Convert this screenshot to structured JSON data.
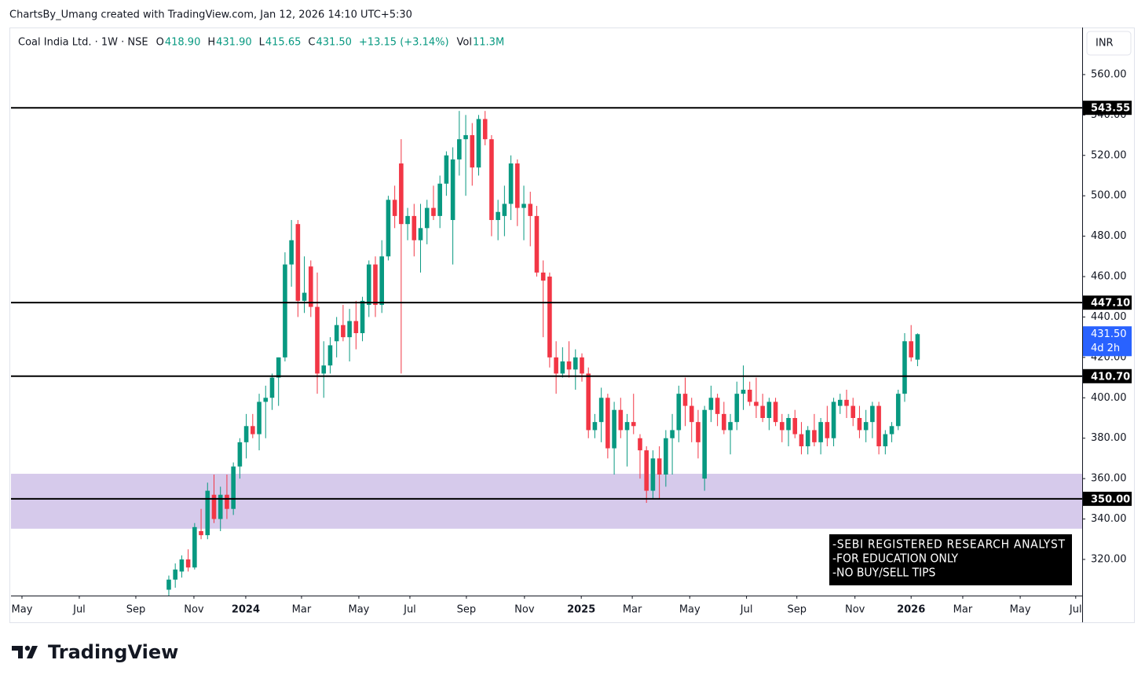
{
  "chart_data": {
    "type": "candlestick",
    "attribution": "ChartsBy_Umang created with TradingView.com, Jan 12, 2026 14:10 UTC+5:30",
    "symbol": "Coal India Ltd. · 1W · NSE",
    "ohlc_header": [
      {
        "label": "O",
        "value": "418.90"
      },
      {
        "label": "H",
        "value": "431.90"
      },
      {
        "label": "L",
        "value": "415.65"
      },
      {
        "label": "C",
        "value": "431.50"
      }
    ],
    "change": "+13.15 (+3.14%)",
    "volume": {
      "label": "Vol",
      "value": "11.3M"
    },
    "currency": "INR",
    "logo": "TradingView",
    "notes": [
      "-SEBI REGISTERED RESEARCH ANALYST",
      "-FOR EDUCATION ONLY",
      "-NO BUY/SELL TIPS"
    ],
    "up_color": "#089981",
    "down_color": "#f23645",
    "open": [
      305,
      310,
      314,
      320,
      316,
      334,
      332,
      352,
      340,
      352,
      345,
      366,
      378,
      386,
      382,
      398,
      400,
      410,
      420,
      466,
      486,
      448,
      465,
      445,
      412,
      416,
      428,
      436,
      430,
      438,
      432,
      446,
      466,
      446,
      470,
      498,
      516,
      486,
      490,
      478,
      484,
      494,
      490,
      506,
      488,
      518,
      528,
      530,
      514,
      538,
      528,
      488,
      490,
      496,
      516,
      494,
      496,
      490,
      462,
      460,
      420,
      412,
      418,
      414,
      420,
      412,
      384,
      388,
      400,
      375,
      394,
      384,
      388,
      380,
      374,
      354,
      370,
      362,
      380,
      384,
      402,
      396,
      388,
      360,
      394,
      400,
      392,
      384,
      388,
      402,
      404,
      398,
      396,
      390,
      398,
      388,
      384,
      390,
      382,
      376,
      384,
      378,
      388,
      380,
      396,
      399,
      396,
      390,
      384,
      388,
      396,
      376,
      382,
      386,
      402,
      428,
      418.9
    ],
    "high": [
      312,
      318,
      322,
      325,
      338,
      345,
      358,
      362,
      356,
      362,
      368,
      380,
      392,
      392,
      402,
      406,
      412,
      420,
      472,
      488,
      488,
      470,
      468,
      462,
      428,
      430,
      440,
      446,
      444,
      448,
      450,
      468,
      470,
      478,
      500,
      505,
      528,
      494,
      496,
      496,
      498,
      505,
      510,
      522,
      524,
      542,
      540,
      536,
      540,
      542,
      530,
      498,
      505,
      520,
      518,
      505,
      502,
      495,
      468,
      462,
      428,
      425,
      428,
      424,
      422,
      415,
      392,
      405,
      402,
      398,
      400,
      392,
      402,
      382,
      376,
      374,
      376,
      384,
      392,
      406,
      410,
      400,
      394,
      396,
      406,
      402,
      398,
      392,
      408,
      416,
      408,
      410,
      402,
      400,
      400,
      392,
      392,
      394,
      388,
      386,
      392,
      390,
      396,
      400,
      402,
      404,
      400,
      396,
      394,
      398,
      398,
      384,
      388,
      404,
      432,
      436,
      431.9
    ],
    "low": [
      302,
      306,
      311,
      314,
      315,
      330,
      330,
      338,
      334,
      340,
      342,
      360,
      370,
      380,
      374,
      380,
      394,
      396,
      418,
      455,
      440,
      442,
      440,
      402,
      400,
      412,
      420,
      428,
      418,
      424,
      428,
      440,
      440,
      442,
      468,
      484,
      412,
      478,
      470,
      462,
      476,
      488,
      484,
      500,
      466,
      510,
      500,
      505,
      510,
      525,
      480,
      478,
      480,
      488,
      485,
      478,
      475,
      460,
      430,
      415,
      402,
      410,
      410,
      404,
      408,
      380,
      380,
      378,
      370,
      362,
      380,
      366,
      382,
      360,
      348,
      350,
      350,
      356,
      362,
      378,
      386,
      378,
      370,
      354,
      388,
      386,
      382,
      372,
      384,
      394,
      396,
      390,
      388,
      384,
      386,
      378,
      376,
      380,
      372,
      372,
      376,
      372,
      376,
      376,
      392,
      390,
      386,
      380,
      378,
      380,
      372,
      372,
      378,
      384,
      398,
      418,
      415.65
    ],
    "close": [
      310,
      315,
      320,
      316,
      336,
      332,
      354,
      340,
      352,
      345,
      366,
      378,
      386,
      382,
      398,
      400,
      410,
      420,
      466,
      478,
      448,
      452,
      445,
      412,
      416,
      426,
      436,
      430,
      438,
      432,
      448,
      466,
      446,
      470,
      498,
      490,
      486,
      490,
      478,
      484,
      494,
      490,
      506,
      520,
      518,
      528,
      530,
      514,
      538,
      528,
      488,
      492,
      496,
      516,
      494,
      496,
      490,
      462,
      458,
      420,
      412,
      418,
      414,
      420,
      412,
      384,
      388,
      400,
      375,
      394,
      384,
      388,
      386,
      374,
      354,
      370,
      362,
      380,
      384,
      402,
      396,
      388,
      378,
      394,
      400,
      392,
      384,
      388,
      402,
      404,
      398,
      396,
      390,
      398,
      388,
      384,
      390,
      382,
      376,
      384,
      378,
      388,
      380,
      398,
      399,
      396,
      390,
      384,
      388,
      396,
      376,
      382,
      386,
      402,
      428,
      420,
      431.5
    ],
    "xlim": [
      -24.45,
      141.5
    ],
    "xticks": [
      {
        "value": -22.75,
        "label": "May"
      },
      {
        "value": -13.87,
        "label": "Jul"
      },
      {
        "value": -5.11,
        "label": "Sep"
      },
      {
        "value": 3.89,
        "label": "Nov"
      },
      {
        "value": 11.92,
        "label": "2024"
      },
      {
        "value": 20.56,
        "label": "Mar"
      },
      {
        "value": 29.44,
        "label": "May"
      },
      {
        "value": 37.35,
        "label": "Jul"
      },
      {
        "value": 46.1,
        "label": "Sep"
      },
      {
        "value": 55.1,
        "label": "Nov"
      },
      {
        "value": 63.9,
        "label": "2025"
      },
      {
        "value": 71.8,
        "label": "Mar"
      },
      {
        "value": 80.7,
        "label": "May"
      },
      {
        "value": 89.5,
        "label": "Jul"
      },
      {
        "value": 97.3,
        "label": "Sep"
      },
      {
        "value": 106.3,
        "label": "Nov"
      },
      {
        "value": 115.0,
        "label": "2026"
      },
      {
        "value": 123.0,
        "label": "Mar"
      },
      {
        "value": 131.9,
        "label": "May"
      },
      {
        "value": 140.5,
        "label": "Jul"
      }
    ],
    "ylim": [
      302.1,
      583.3
    ],
    "yticks": [
      {
        "value": 320,
        "label": "320.00"
      },
      {
        "value": 340,
        "label": "340.00"
      },
      {
        "value": 360,
        "label": "360.00"
      },
      {
        "value": 380,
        "label": "380.00"
      },
      {
        "value": 400,
        "label": "400.00"
      },
      {
        "value": 420,
        "label": "420.00"
      },
      {
        "value": 440,
        "label": "440.00"
      },
      {
        "value": 460,
        "label": "460.00"
      },
      {
        "value": 480,
        "label": "480.00"
      },
      {
        "value": 500,
        "label": "500.00"
      },
      {
        "value": 520,
        "label": "520.00"
      },
      {
        "value": 540,
        "label": "540.00"
      },
      {
        "value": 560,
        "label": "560.00"
      }
    ],
    "levels": [
      {
        "value": 543.55,
        "label": "543.55"
      },
      {
        "value": 447.1,
        "label": "447.10"
      },
      {
        "value": 410.7,
        "label": "410.70"
      },
      {
        "value": 350,
        "label": "350.00"
      }
    ],
    "zone": [
      335.2,
      362.4
    ],
    "zone_color": "#d1c4e9",
    "last_price": {
      "value": 431.5,
      "label": "431.50"
    },
    "countdown": "4d 2h",
    "last_color": "#2962ff"
  }
}
